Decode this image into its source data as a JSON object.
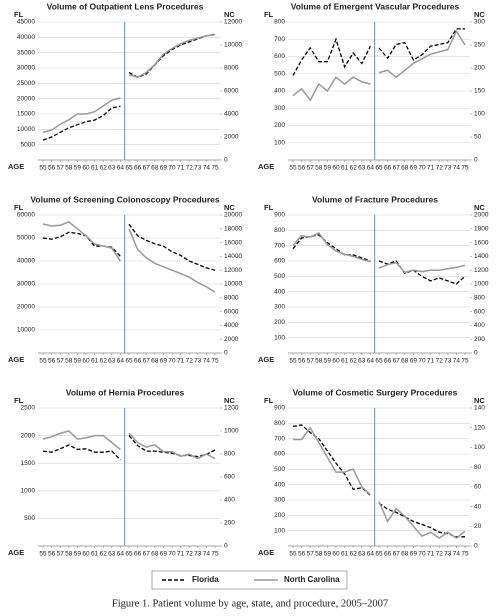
{
  "chart_data": [
    {
      "type": "line",
      "title": "Volume of Outpatient Lens Procedures",
      "y_label": "FL",
      "y2_label": "NC",
      "x_label": "AGE",
      "x": [
        55,
        56,
        57,
        58,
        59,
        60,
        61,
        62,
        63,
        64,
        null,
        65,
        66,
        67,
        68,
        69,
        70,
        71,
        72,
        73,
        74,
        75
      ],
      "ylim": [
        0,
        45000
      ],
      "yticks": [
        5000,
        10000,
        15000,
        20000,
        25000,
        30000,
        35000,
        40000,
        45000
      ],
      "y2lim": [
        0,
        12000
      ],
      "y2ticks": [
        0,
        2000,
        4000,
        6000,
        8000,
        10000,
        12000
      ],
      "grid": true,
      "series": [
        {
          "name": "Florida",
          "color": "#000000",
          "style": "dashed",
          "values": [
            6500,
            7500,
            9000,
            10500,
            11500,
            12500,
            13000,
            14500,
            17000,
            17500,
            null,
            28500,
            27000,
            28000,
            31000,
            34000,
            36000,
            37500,
            38500,
            39500,
            40500,
            41000
          ]
        },
        {
          "name": "North Carolina",
          "color": "#999999",
          "style": "solid",
          "axis": "y2",
          "values": [
            2400,
            2600,
            3100,
            3500,
            4000,
            4000,
            4200,
            4700,
            5200,
            5400,
            null,
            7400,
            7200,
            7600,
            8300,
            9200,
            9700,
            10100,
            10400,
            10600,
            10800,
            10900
          ]
        }
      ]
    },
    {
      "type": "line",
      "title": "Volume of Emergent Vascular Procedures",
      "y_label": "FL",
      "y2_label": "NC",
      "x_label": "AGE",
      "x": [
        55,
        56,
        57,
        58,
        59,
        60,
        61,
        62,
        63,
        64,
        null,
        65,
        66,
        67,
        68,
        69,
        70,
        71,
        72,
        73,
        74,
        75
      ],
      "ylim": [
        0,
        800
      ],
      "yticks": [
        100,
        200,
        300,
        400,
        500,
        600,
        700,
        800
      ],
      "y2lim": [
        0,
        300
      ],
      "y2ticks": [
        0,
        50,
        100,
        150,
        200,
        250,
        300
      ],
      "grid": true,
      "series": [
        {
          "name": "Florida",
          "color": "#000000",
          "style": "dashed",
          "values": [
            490,
            580,
            650,
            570,
            570,
            700,
            540,
            620,
            560,
            660,
            null,
            650,
            590,
            670,
            680,
            580,
            610,
            660,
            670,
            680,
            760,
            760
          ]
        },
        {
          "name": "North Carolina",
          "color": "#999999",
          "style": "solid",
          "axis": "y2",
          "values": [
            140,
            155,
            130,
            165,
            150,
            180,
            165,
            180,
            170,
            165,
            null,
            190,
            195,
            180,
            195,
            210,
            220,
            230,
            235,
            240,
            280,
            250
          ]
        }
      ]
    },
    {
      "type": "line",
      "title": "Volume of Screening Colonoscopy Procedures",
      "y_label": "FL",
      "y2_label": "NC",
      "x_label": "AGE",
      "x": [
        55,
        56,
        57,
        58,
        59,
        60,
        61,
        62,
        63,
        64,
        null,
        65,
        66,
        67,
        68,
        69,
        70,
        71,
        72,
        73,
        74,
        75
      ],
      "ylim": [
        0,
        60000
      ],
      "yticks": [
        10000,
        20000,
        30000,
        40000,
        50000,
        60000
      ],
      "y2lim": [
        0,
        20000
      ],
      "y2ticks": [
        0,
        2000,
        4000,
        6000,
        8000,
        10000,
        12000,
        14000,
        16000,
        18000,
        20000
      ],
      "grid": true,
      "series": [
        {
          "name": "Florida",
          "color": "#000000",
          "style": "dashed",
          "values": [
            50000,
            49500,
            50500,
            52500,
            52000,
            51000,
            46500,
            46500,
            46000,
            42000,
            null,
            56000,
            51000,
            49000,
            47500,
            46500,
            44000,
            42500,
            40000,
            38500,
            37000,
            36000
          ]
        },
        {
          "name": "North Carolina",
          "color": "#999999",
          "style": "solid",
          "axis": "y2",
          "values": [
            18700,
            18400,
            18500,
            19000,
            18000,
            17000,
            15800,
            15500,
            15200,
            13300,
            null,
            18000,
            15000,
            13800,
            13000,
            12500,
            12000,
            11500,
            11000,
            10200,
            9600,
            8800
          ]
        }
      ]
    },
    {
      "type": "line",
      "title": "Volume of Fracture Procedures",
      "y_label": "FL",
      "y2_label": "NC",
      "x_label": "AGE",
      "x": [
        55,
        56,
        57,
        58,
        59,
        60,
        61,
        62,
        63,
        64,
        null,
        65,
        66,
        67,
        68,
        69,
        70,
        71,
        72,
        73,
        74,
        75
      ],
      "ylim": [
        0,
        900
      ],
      "yticks": [
        100,
        200,
        300,
        400,
        500,
        600,
        700,
        800,
        900
      ],
      "y2lim": [
        0,
        2000
      ],
      "y2ticks": [
        0,
        200,
        400,
        600,
        800,
        1000,
        1200,
        1400,
        1600,
        1800,
        2000
      ],
      "grid": true,
      "series": [
        {
          "name": "Florida",
          "color": "#000000",
          "style": "dashed",
          "values": [
            680,
            750,
            760,
            770,
            720,
            680,
            640,
            640,
            620,
            600,
            null,
            600,
            580,
            600,
            520,
            540,
            500,
            470,
            490,
            470,
            450,
            500
          ]
        },
        {
          "name": "North Carolina",
          "color": "#999999",
          "style": "solid",
          "axis": "y2",
          "values": [
            1560,
            1700,
            1680,
            1740,
            1570,
            1480,
            1430,
            1400,
            1360,
            1320,
            null,
            1230,
            1280,
            1310,
            1170,
            1200,
            1180,
            1200,
            1200,
            1220,
            1240,
            1270
          ]
        }
      ]
    },
    {
      "type": "line",
      "title": "Volume of Hernia Procedures",
      "y_label": "FL",
      "y2_label": "NC",
      "x_label": "AGE",
      "x": [
        55,
        56,
        57,
        58,
        59,
        60,
        61,
        62,
        63,
        64,
        null,
        65,
        66,
        67,
        68,
        69,
        70,
        71,
        72,
        73,
        74,
        75
      ],
      "ylim": [
        0,
        2500
      ],
      "yticks": [
        500,
        1000,
        1500,
        2000,
        2500
      ],
      "y2lim": [
        0,
        1200
      ],
      "y2ticks": [
        0,
        200,
        400,
        600,
        800,
        1000,
        1200
      ],
      "grid": true,
      "series": [
        {
          "name": "Florida",
          "color": "#000000",
          "style": "dashed",
          "values": [
            1720,
            1700,
            1760,
            1830,
            1750,
            1760,
            1700,
            1700,
            1720,
            1560,
            null,
            2000,
            1820,
            1720,
            1720,
            1700,
            1680,
            1640,
            1640,
            1620,
            1660,
            1740
          ]
        },
        {
          "name": "North Carolina",
          "color": "#999999",
          "style": "solid",
          "axis": "y2",
          "values": [
            930,
            950,
            980,
            1000,
            930,
            940,
            960,
            960,
            900,
            840,
            null,
            980,
            900,
            860,
            880,
            820,
            820,
            780,
            800,
            760,
            800,
            760
          ]
        }
      ]
    },
    {
      "type": "line",
      "title": "Volume of Cosmetic Surgery Procedures",
      "y_label": "FL",
      "y2_label": "NC",
      "x_label": "AGE",
      "x": [
        55,
        56,
        57,
        58,
        59,
        60,
        61,
        62,
        63,
        64,
        null,
        65,
        66,
        67,
        68,
        69,
        70,
        71,
        72,
        73,
        74,
        75
      ],
      "ylim": [
        0,
        900
      ],
      "yticks": [
        100,
        200,
        300,
        400,
        500,
        600,
        700,
        800,
        900
      ],
      "y2lim": [
        0,
        140
      ],
      "y2ticks": [
        0,
        20,
        40,
        60,
        80,
        100,
        120,
        140
      ],
      "grid": true,
      "series": [
        {
          "name": "Florida",
          "color": "#000000",
          "style": "dashed",
          "values": [
            780,
            790,
            740,
            700,
            620,
            540,
            470,
            370,
            380,
            330,
            null,
            280,
            240,
            220,
            190,
            160,
            140,
            120,
            90,
            80,
            60,
            60
          ]
        },
        {
          "name": "North Carolina",
          "color": "#999999",
          "style": "solid",
          "axis": "y2",
          "values": [
            108,
            108,
            120,
            105,
            90,
            75,
            75,
            78,
            60,
            52,
            null,
            45,
            25,
            38,
            30,
            20,
            10,
            14,
            8,
            14,
            8,
            15
          ]
        }
      ]
    }
  ],
  "caption": "Figure 1. Patient volume by age, state, and procedure, 2005–2007"
}
